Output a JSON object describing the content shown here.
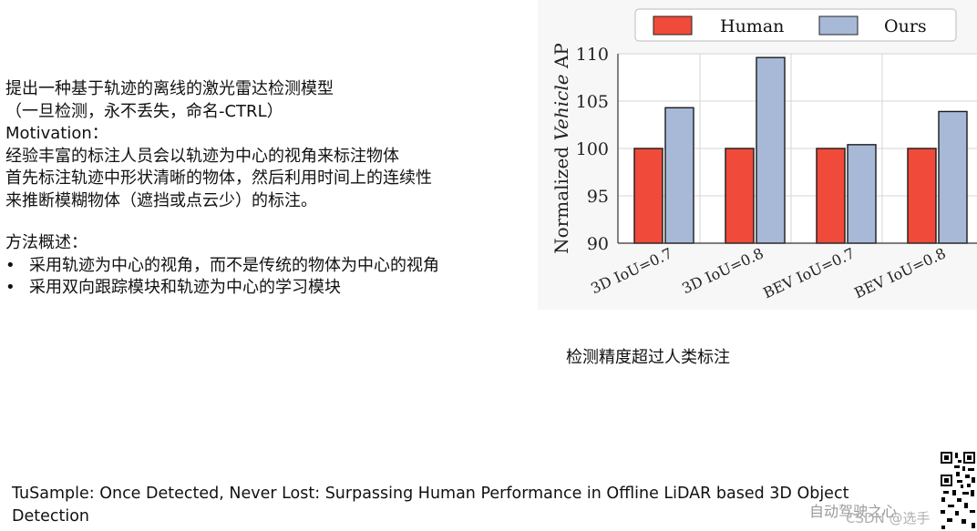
{
  "slide": {
    "intro_lines": [
      "提出一种基于轨迹的离线的激光雷达检测模型",
      "（一旦检测，永不丢失，命名-CTRL）"
    ],
    "motivation_label": "Motivation：",
    "motivation_lines": [
      "经验丰富的标注人员会以轨迹为中心的视角来标注物体",
      "首先标注轨迹中形状清晰的物体，然后利用时间上的连续性",
      "来推断模糊物体（遮挡或点云少）的标注。"
    ],
    "method_label": "方法概述：",
    "method_bullets": [
      "采用轨迹为中心的视角，而不是传统的物体为中心的视角",
      "采用双向跟踪模块和轨迹为中心的学习模块"
    ],
    "bullet_char": "•",
    "chart_caption": "检测精度超过人类标注",
    "paper_reference": "TuSample: Once Detected, Never Lost: Surpassing Human Performance in Offline LiDAR based 3D Object Detection",
    "watermark_text": "自动驾驶之心",
    "watermark_csdn": "CSDN @选手  "
  },
  "chart_data": {
    "type": "bar",
    "categories": [
      "3D IoU=0.7",
      "3D IoU=0.8",
      "BEV IoU=0.7",
      "BEV IoU=0.8"
    ],
    "series": [
      {
        "name": "Human",
        "values": [
          100,
          100,
          100,
          100
        ],
        "color": "#f04a3a"
      },
      {
        "name": "Ours",
        "values": [
          104.3,
          109.6,
          100.4,
          103.9
        ],
        "color": "#a8b9d8"
      }
    ],
    "ylabel_prefix": "Normalized ",
    "ylabel_italic": "Vehicle",
    "ylabel_suffix": " AP",
    "ylim": [
      90,
      110
    ],
    "yticks": [
      90,
      95,
      100,
      105,
      110
    ],
    "grid": true,
    "legend_position": "top"
  }
}
